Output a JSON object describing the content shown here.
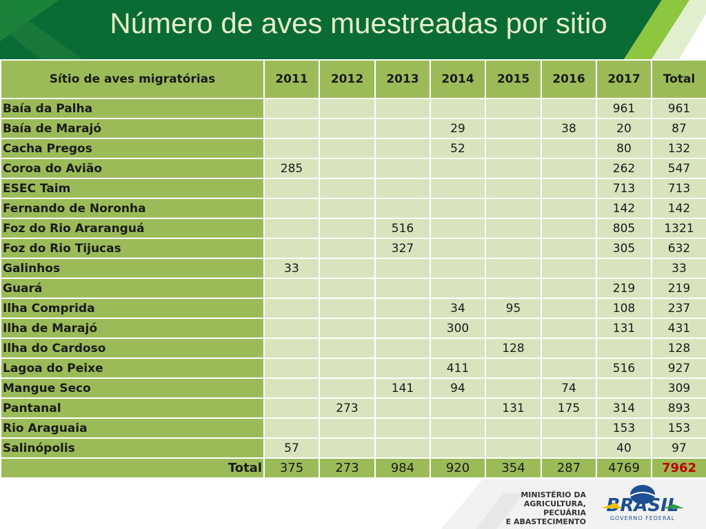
{
  "title": "Número de aves muestreadas por sitio",
  "colors": {
    "header_dark": "#0b6b35",
    "header_light": "#8dc63f",
    "table_header": "#9bbb59",
    "cell_light": "#d7e4bd",
    "grand_total": "#c00000"
  },
  "table": {
    "headers": [
      "Sítio de aves migratórias",
      "2011",
      "2012",
      "2013",
      "2014",
      "2015",
      "2016",
      "2017",
      "Total"
    ],
    "rows": [
      {
        "site": "Baía da Palha",
        "values": [
          "",
          "",
          "",
          "",
          "",
          "",
          "961",
          "961"
        ]
      },
      {
        "site": "Baía de Marajó",
        "values": [
          "",
          "",
          "",
          "29",
          "",
          "38",
          "20",
          "87"
        ]
      },
      {
        "site": "Cacha Pregos",
        "values": [
          "",
          "",
          "",
          "52",
          "",
          "",
          "80",
          "132"
        ]
      },
      {
        "site": "Coroa do Avião",
        "values": [
          "285",
          "",
          "",
          "",
          "",
          "",
          "262",
          "547"
        ]
      },
      {
        "site": "ESEC Taim",
        "values": [
          "",
          "",
          "",
          "",
          "",
          "",
          "713",
          "713"
        ]
      },
      {
        "site": "Fernando de Noronha",
        "values": [
          "",
          "",
          "",
          "",
          "",
          "",
          "142",
          "142"
        ]
      },
      {
        "site": "Foz do Rio Araranguá",
        "values": [
          "",
          "",
          "516",
          "",
          "",
          "",
          "805",
          "1321"
        ]
      },
      {
        "site": "Foz do Rio Tijucas",
        "values": [
          "",
          "",
          "327",
          "",
          "",
          "",
          "305",
          "632"
        ]
      },
      {
        "site": "Galinhos",
        "values": [
          "33",
          "",
          "",
          "",
          "",
          "",
          "",
          "33"
        ]
      },
      {
        "site": "Guará",
        "values": [
          "",
          "",
          "",
          "",
          "",
          "",
          "219",
          "219"
        ]
      },
      {
        "site": "Ilha Comprida",
        "values": [
          "",
          "",
          "",
          "34",
          "95",
          "",
          "108",
          "237"
        ]
      },
      {
        "site": "Ilha de Marajó",
        "values": [
          "",
          "",
          "",
          "300",
          "",
          "",
          "131",
          "431"
        ]
      },
      {
        "site": "Ilha do Cardoso",
        "values": [
          "",
          "",
          "",
          "",
          "128",
          "",
          "",
          "128"
        ]
      },
      {
        "site": "Lagoa do Peixe",
        "values": [
          "",
          "",
          "",
          "411",
          "",
          "",
          "516",
          "927"
        ]
      },
      {
        "site": "Mangue Seco",
        "values": [
          "",
          "",
          "141",
          "94",
          "",
          "74",
          "",
          "309"
        ]
      },
      {
        "site": "Pantanal",
        "values": [
          "",
          "273",
          "",
          "",
          "131",
          "175",
          "314",
          "893"
        ]
      },
      {
        "site": "Rio Araguaia",
        "values": [
          "",
          "",
          "",
          "",
          "",
          "",
          "153",
          "153"
        ]
      },
      {
        "site": "Salinópolis",
        "values": [
          "57",
          "",
          "",
          "",
          "",
          "",
          "40",
          "97"
        ]
      }
    ],
    "total": {
      "label": "Total",
      "values": [
        "375",
        "273",
        "984",
        "920",
        "354",
        "287",
        "4769",
        "7962"
      ]
    }
  },
  "footer": {
    "ministry_lines": [
      "MINISTÉRIO DA",
      "AGRICULTURA, PECUÁRIA",
      "E ABASTECIMENTO"
    ],
    "brasil_text": "BRASIL",
    "governo_text": "GOVERNO FEDERAL"
  }
}
